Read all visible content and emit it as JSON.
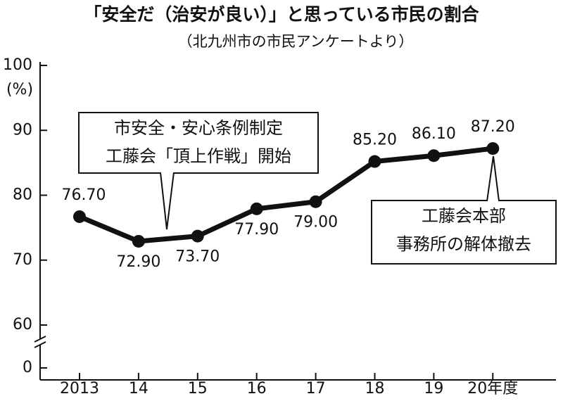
{
  "chart_data": {
    "type": "line",
    "title": "「安全だ（治安が良い）」と思っている市民の割合",
    "subtitle": "（北九州市の市民アンケートより）",
    "y_unit": "(%)",
    "categories": [
      "2013",
      "14",
      "15",
      "16",
      "17",
      "18",
      "19",
      "20年度"
    ],
    "series": [
      {
        "name": "安全だと思っている市民の割合",
        "color": "#111111",
        "values": [
          76.7,
          72.9,
          73.7,
          77.9,
          79.0,
          85.2,
          86.1,
          87.2
        ],
        "value_labels": [
          "76.70",
          "72.90",
          "73.70",
          "77.90",
          "79.00",
          "85.20",
          "86.10",
          "87.20"
        ]
      }
    ],
    "ylim": [
      0,
      100
    ],
    "axis_break": [
      0,
      60
    ],
    "yticks": [
      0,
      60,
      70,
      80,
      90,
      100
    ],
    "grid": false,
    "legend": false,
    "annotations": [
      {
        "lines": [
          "市安全・安心条例制定",
          "工藤会「頂上作戦」開始"
        ]
      },
      {
        "lines": [
          "工藤会本部",
          "事務所の解体撤去"
        ]
      }
    ]
  }
}
